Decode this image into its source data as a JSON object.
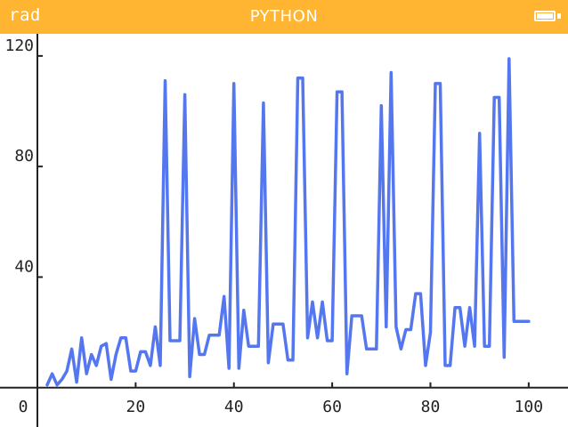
{
  "status_bar": {
    "mode": "rad",
    "title": "PYTHON",
    "battery_icon": "battery-full-icon",
    "battery_level": 1.0,
    "background_color": "#ffb531",
    "text_color": "#ffffff"
  },
  "chart_data": {
    "type": "line",
    "title": "",
    "xlabel": "",
    "ylabel": "",
    "xlim": [
      0,
      108
    ],
    "ylim": [
      -2,
      128
    ],
    "grid": false,
    "line_color": "#5477f0",
    "x_ticks": [
      {
        "value": 0,
        "label": "0"
      },
      {
        "value": 20,
        "label": "20"
      },
      {
        "value": 40,
        "label": "40"
      },
      {
        "value": 60,
        "label": "60"
      },
      {
        "value": 80,
        "label": "80"
      },
      {
        "value": 100,
        "label": "100"
      }
    ],
    "y_ticks": [
      {
        "value": 40,
        "label": "40"
      },
      {
        "value": 80,
        "label": "80"
      },
      {
        "value": 120,
        "label": "120"
      }
    ],
    "series": [
      {
        "x": [
          2,
          3,
          4,
          5,
          6,
          7,
          8,
          9,
          10,
          11,
          12,
          13,
          14,
          15,
          16,
          17,
          18,
          19,
          20,
          21,
          22,
          23,
          24,
          25,
          26,
          27,
          28,
          29,
          30,
          31,
          32,
          33,
          34,
          35,
          36,
          37,
          38,
          39,
          40,
          41,
          42,
          43,
          44,
          45,
          46,
          47,
          48,
          49,
          50,
          51,
          52,
          53,
          54,
          55,
          56,
          57,
          58,
          59,
          60,
          61,
          62,
          63,
          64,
          65,
          66,
          67,
          68,
          69,
          70,
          71,
          72,
          73,
          74,
          75,
          76,
          77,
          78,
          79,
          80,
          81,
          82,
          83,
          84,
          85,
          86,
          87,
          88,
          89,
          90,
          91,
          92,
          93,
          94,
          95,
          96,
          97,
          98,
          99,
          100
        ],
        "y": [
          1,
          5,
          1,
          3,
          6,
          14,
          2,
          18,
          5,
          12,
          8,
          15,
          16,
          3,
          12,
          18,
          18,
          6,
          6,
          13,
          13,
          8,
          22,
          8,
          111,
          17,
          17,
          17,
          106,
          4,
          25,
          12,
          12,
          19,
          19,
          19,
          33,
          7,
          110,
          7,
          28,
          15,
          15,
          15,
          103,
          9,
          23,
          23,
          23,
          10,
          10,
          112,
          112,
          18,
          31,
          18,
          31,
          17,
          17,
          107,
          107,
          5,
          26,
          26,
          26,
          14,
          14,
          14,
          102,
          22,
          114,
          22,
          14,
          21,
          21,
          34,
          34,
          8,
          20,
          110,
          110,
          8,
          8,
          29,
          29,
          15,
          29,
          15,
          92,
          15,
          15,
          105,
          105,
          11,
          119,
          24,
          24,
          24,
          24
        ]
      }
    ]
  }
}
